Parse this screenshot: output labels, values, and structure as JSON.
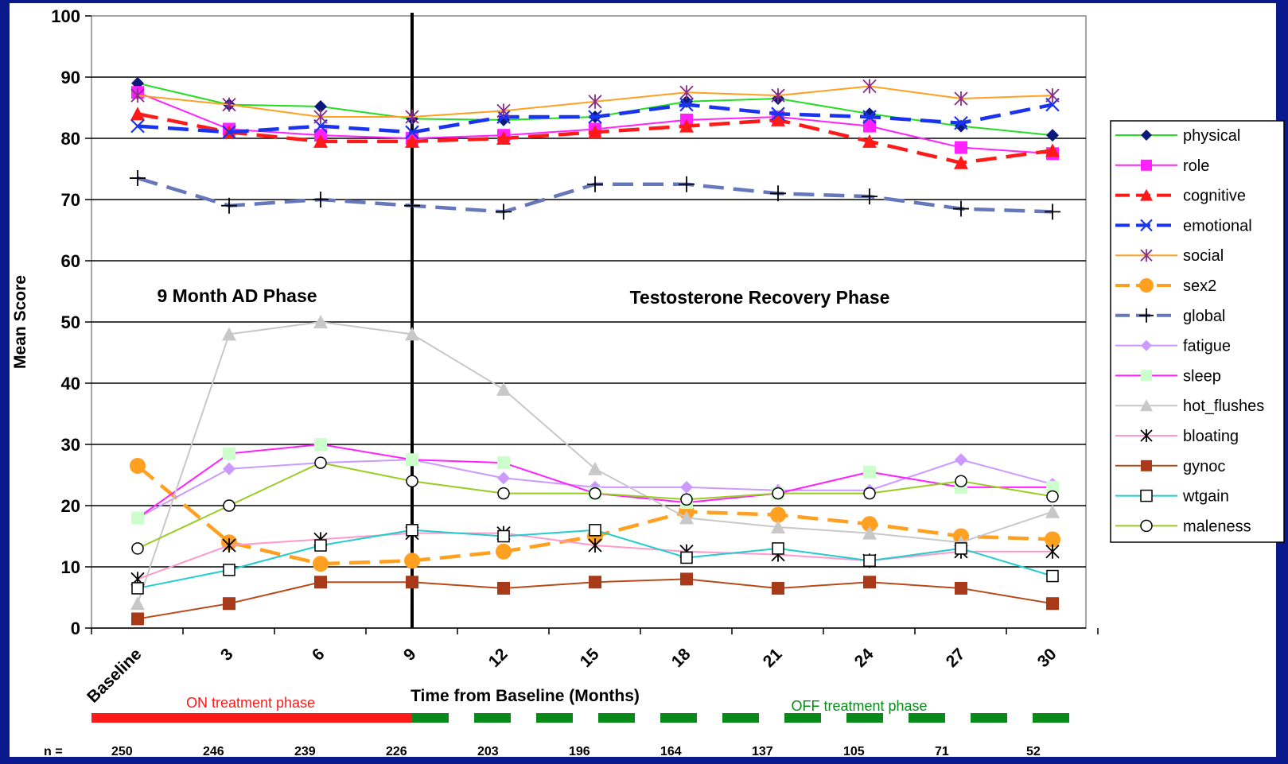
{
  "chart_data": {
    "type": "line",
    "ylabel": "Mean Score",
    "xlabel": "Time from Baseline (Months)",
    "ylim": [
      0,
      100
    ],
    "yticks": [
      0,
      10,
      20,
      30,
      40,
      50,
      60,
      70,
      80,
      90,
      100
    ],
    "categories": [
      "Baseline",
      "3",
      "6",
      "9",
      "12",
      "15",
      "18",
      "21",
      "24",
      "27",
      "30"
    ],
    "grid": true,
    "legend": "right",
    "n_label": "n =",
    "n_values": [
      "250",
      "246",
      "239",
      "226",
      "203",
      "196",
      "164",
      "137",
      "105",
      "71",
      "52"
    ],
    "phase_labels": {
      "ad_phase": "9 Month AD Phase",
      "recovery_phase": "Testosterone Recovery Phase",
      "on_treatment": "ON treatment phase",
      "off_treatment": "OFF treatment phase"
    },
    "colors": {
      "background": "#0a1a8c",
      "plot": "#ffffff",
      "on_treatment": "#ff1a1a",
      "off_treatment": "#0a8a1a"
    },
    "series": [
      {
        "name": "physical",
        "color": "#22dd22",
        "marker": "diamond",
        "marker_color": "#0a1a7a",
        "dash": false,
        "values": [
          89,
          85.5,
          85.2,
          83.2,
          83,
          83.5,
          86,
          86.5,
          84,
          82,
          80.5
        ]
      },
      {
        "name": "role",
        "color": "#ff22ff",
        "marker": "square",
        "marker_color": "#ff22ff",
        "dash": false,
        "values": [
          87.5,
          81.5,
          80.5,
          80,
          80.5,
          81.5,
          83,
          83.5,
          82,
          78.5,
          77.5
        ]
      },
      {
        "name": "cognitive",
        "color": "#ff1a1a",
        "marker": "triangle",
        "marker_color": "#ff1a1a",
        "dash": true,
        "values": [
          84,
          81,
          79.5,
          79.5,
          80,
          81,
          82,
          83,
          79.5,
          76,
          78
        ]
      },
      {
        "name": "emotional",
        "color": "#1a33ee",
        "marker": "x",
        "marker_color": "#1a33ee",
        "dash": true,
        "values": [
          82,
          81,
          82,
          81,
          83.5,
          83.5,
          85.5,
          84,
          83.5,
          82.5,
          85.5
        ]
      },
      {
        "name": "social",
        "color": "#ffa020",
        "marker": "star",
        "marker_color": "#8a2a8a",
        "dash": false,
        "values": [
          87,
          85.5,
          83.5,
          83.5,
          84.5,
          86,
          87.5,
          87,
          88.5,
          86.5,
          87
        ]
      },
      {
        "name": "sex2",
        "color": "#ffa020",
        "marker": "circle",
        "marker_color": "#ffa020",
        "dash": true,
        "values": [
          26.5,
          14,
          10.5,
          11,
          12.5,
          15,
          19,
          18.5,
          17,
          15,
          14.5
        ]
      },
      {
        "name": "global",
        "color": "#6677bb",
        "marker": "plus",
        "marker_color": "#000000",
        "dash": true,
        "values": [
          73.5,
          69,
          70,
          69,
          68,
          72.5,
          72.5,
          71,
          70.5,
          68.5,
          68
        ]
      },
      {
        "name": "fatigue",
        "color": "#cc99ff",
        "marker": "diamond",
        "marker_color": "#cc99ff",
        "dash": false,
        "values": [
          18,
          26,
          27,
          27.5,
          24.5,
          23,
          23,
          22.5,
          22.5,
          27.5,
          23.5
        ]
      },
      {
        "name": "sleep",
        "color": "#ff22ff",
        "marker": "square",
        "marker_color": "#ccffcc",
        "dash": false,
        "values": [
          18,
          28.5,
          30,
          27.5,
          27,
          22,
          20.5,
          22,
          25.5,
          23,
          23
        ]
      },
      {
        "name": "hot_flushes",
        "color": "#c8c8c8",
        "marker": "triangle",
        "marker_color": "#c8c8c8",
        "dash": false,
        "values": [
          4,
          48,
          50,
          48,
          39,
          26,
          18,
          16.5,
          15.5,
          14,
          19
        ]
      },
      {
        "name": "bloating",
        "color": "#ff99cc",
        "marker": "star",
        "marker_color": "#000000",
        "dash": false,
        "values": [
          8,
          13.5,
          14.5,
          15.5,
          15.5,
          13.5,
          12.5,
          12,
          11,
          12.5,
          12.5
        ]
      },
      {
        "name": "gynoc",
        "color": "#b84a1a",
        "marker": "square",
        "marker_color": "#a83a1a",
        "dash": false,
        "values": [
          1.5,
          4,
          7.5,
          7.5,
          6.5,
          7.5,
          8,
          6.5,
          7.5,
          6.5,
          4
        ]
      },
      {
        "name": "wtgain",
        "color": "#22cccc",
        "marker": "open-square",
        "marker_color": "#000000",
        "dash": false,
        "values": [
          6.5,
          9.5,
          13.5,
          16,
          15,
          16,
          11.5,
          13,
          11,
          13,
          8.5
        ]
      },
      {
        "name": "maleness",
        "color": "#99cc22",
        "marker": "open-circle",
        "marker_color": "#000000",
        "dash": false,
        "values": [
          13,
          20,
          27,
          24,
          22,
          22,
          21,
          22,
          22,
          24,
          21.5
        ]
      }
    ]
  }
}
